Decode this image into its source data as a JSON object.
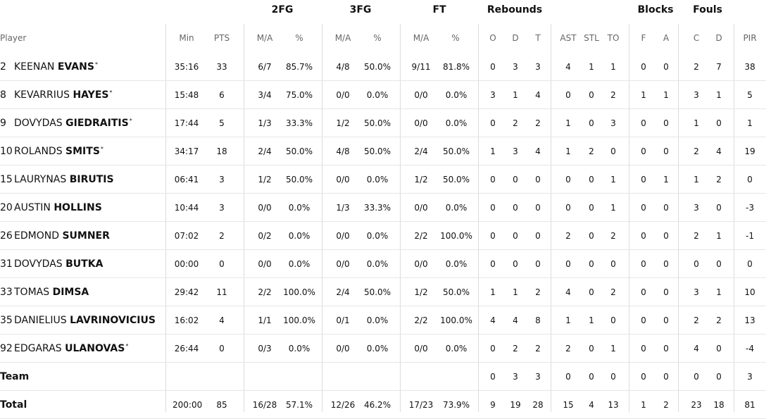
{
  "groups": {
    "fg2": "2FG",
    "fg3": "3FG",
    "ft": "FT",
    "rebounds": "Rebounds",
    "blocks": "Blocks",
    "fouls": "Fouls"
  },
  "headers": {
    "player": "Player",
    "min": "Min",
    "pts": "PTS",
    "fg2_ma": "M/A",
    "fg2_pct": "%",
    "fg3_ma": "M/A",
    "fg3_pct": "%",
    "ft_ma": "M/A",
    "ft_pct": "%",
    "reb_o": "O",
    "reb_d": "D",
    "reb_t": "T",
    "ast": "AST",
    "stl": "STL",
    "to": "TO",
    "blk_f": "F",
    "blk_a": "A",
    "foul_c": "C",
    "foul_d": "D",
    "pir": "PIR"
  },
  "players": [
    {
      "num": "2",
      "first": "KEENAN",
      "last": "EVANS",
      "starter": "*",
      "min": "35:16",
      "pts": "33",
      "fg2_ma": "6/7",
      "fg2_pct": "85.7%",
      "fg3_ma": "4/8",
      "fg3_pct": "50.0%",
      "ft_ma": "9/11",
      "ft_pct": "81.8%",
      "reb_o": "0",
      "reb_d": "3",
      "reb_t": "3",
      "ast": "4",
      "stl": "1",
      "to": "1",
      "blk_f": "0",
      "blk_a": "0",
      "foul_c": "2",
      "foul_d": "7",
      "pir": "38"
    },
    {
      "num": "8",
      "first": "KEVARRIUS",
      "last": "HAYES",
      "starter": "*",
      "min": "15:48",
      "pts": "6",
      "fg2_ma": "3/4",
      "fg2_pct": "75.0%",
      "fg3_ma": "0/0",
      "fg3_pct": "0.0%",
      "ft_ma": "0/0",
      "ft_pct": "0.0%",
      "reb_o": "3",
      "reb_d": "1",
      "reb_t": "4",
      "ast": "0",
      "stl": "0",
      "to": "2",
      "blk_f": "1",
      "blk_a": "1",
      "foul_c": "3",
      "foul_d": "1",
      "pir": "5"
    },
    {
      "num": "9",
      "first": "DOVYDAS",
      "last": "GIEDRAITIS",
      "starter": "*",
      "min": "17:44",
      "pts": "5",
      "fg2_ma": "1/3",
      "fg2_pct": "33.3%",
      "fg3_ma": "1/2",
      "fg3_pct": "50.0%",
      "ft_ma": "0/0",
      "ft_pct": "0.0%",
      "reb_o": "0",
      "reb_d": "2",
      "reb_t": "2",
      "ast": "1",
      "stl": "0",
      "to": "3",
      "blk_f": "0",
      "blk_a": "0",
      "foul_c": "1",
      "foul_d": "0",
      "pir": "1"
    },
    {
      "num": "10",
      "first": "ROLANDS",
      "last": "SMITS",
      "starter": "*",
      "min": "34:17",
      "pts": "18",
      "fg2_ma": "2/4",
      "fg2_pct": "50.0%",
      "fg3_ma": "4/8",
      "fg3_pct": "50.0%",
      "ft_ma": "2/4",
      "ft_pct": "50.0%",
      "reb_o": "1",
      "reb_d": "3",
      "reb_t": "4",
      "ast": "1",
      "stl": "2",
      "to": "0",
      "blk_f": "0",
      "blk_a": "0",
      "foul_c": "2",
      "foul_d": "4",
      "pir": "19"
    },
    {
      "num": "15",
      "first": "LAURYNAS",
      "last": "BIRUTIS",
      "starter": "",
      "min": "06:41",
      "pts": "3",
      "fg2_ma": "1/2",
      "fg2_pct": "50.0%",
      "fg3_ma": "0/0",
      "fg3_pct": "0.0%",
      "ft_ma": "1/2",
      "ft_pct": "50.0%",
      "reb_o": "0",
      "reb_d": "0",
      "reb_t": "0",
      "ast": "0",
      "stl": "0",
      "to": "1",
      "blk_f": "0",
      "blk_a": "1",
      "foul_c": "1",
      "foul_d": "2",
      "pir": "0"
    },
    {
      "num": "20",
      "first": "AUSTIN",
      "last": "HOLLINS",
      "starter": "",
      "min": "10:44",
      "pts": "3",
      "fg2_ma": "0/0",
      "fg2_pct": "0.0%",
      "fg3_ma": "1/3",
      "fg3_pct": "33.3%",
      "ft_ma": "0/0",
      "ft_pct": "0.0%",
      "reb_o": "0",
      "reb_d": "0",
      "reb_t": "0",
      "ast": "0",
      "stl": "0",
      "to": "1",
      "blk_f": "0",
      "blk_a": "0",
      "foul_c": "3",
      "foul_d": "0",
      "pir": "-3"
    },
    {
      "num": "26",
      "first": "EDMOND",
      "last": "SUMNER",
      "starter": "",
      "min": "07:02",
      "pts": "2",
      "fg2_ma": "0/2",
      "fg2_pct": "0.0%",
      "fg3_ma": "0/0",
      "fg3_pct": "0.0%",
      "ft_ma": "2/2",
      "ft_pct": "100.0%",
      "reb_o": "0",
      "reb_d": "0",
      "reb_t": "0",
      "ast": "2",
      "stl": "0",
      "to": "2",
      "blk_f": "0",
      "blk_a": "0",
      "foul_c": "2",
      "foul_d": "1",
      "pir": "-1"
    },
    {
      "num": "31",
      "first": "DOVYDAS",
      "last": "BUTKA",
      "starter": "",
      "min": "00:00",
      "pts": "0",
      "fg2_ma": "0/0",
      "fg2_pct": "0.0%",
      "fg3_ma": "0/0",
      "fg3_pct": "0.0%",
      "ft_ma": "0/0",
      "ft_pct": "0.0%",
      "reb_o": "0",
      "reb_d": "0",
      "reb_t": "0",
      "ast": "0",
      "stl": "0",
      "to": "0",
      "blk_f": "0",
      "blk_a": "0",
      "foul_c": "0",
      "foul_d": "0",
      "pir": "0"
    },
    {
      "num": "33",
      "first": "TOMAS",
      "last": "DIMSA",
      "starter": "",
      "min": "29:42",
      "pts": "11",
      "fg2_ma": "2/2",
      "fg2_pct": "100.0%",
      "fg3_ma": "2/4",
      "fg3_pct": "50.0%",
      "ft_ma": "1/2",
      "ft_pct": "50.0%",
      "reb_o": "1",
      "reb_d": "1",
      "reb_t": "2",
      "ast": "4",
      "stl": "0",
      "to": "2",
      "blk_f": "0",
      "blk_a": "0",
      "foul_c": "3",
      "foul_d": "1",
      "pir": "10"
    },
    {
      "num": "35",
      "first": "DANIELIUS",
      "last": "LAVRINOVICIUS",
      "starter": "",
      "min": "16:02",
      "pts": "4",
      "fg2_ma": "1/1",
      "fg2_pct": "100.0%",
      "fg3_ma": "0/1",
      "fg3_pct": "0.0%",
      "ft_ma": "2/2",
      "ft_pct": "100.0%",
      "reb_o": "4",
      "reb_d": "4",
      "reb_t": "8",
      "ast": "1",
      "stl": "1",
      "to": "0",
      "blk_f": "0",
      "blk_a": "0",
      "foul_c": "2",
      "foul_d": "2",
      "pir": "13"
    },
    {
      "num": "92",
      "first": "EDGARAS",
      "last": "ULANOVAS",
      "starter": "*",
      "min": "26:44",
      "pts": "0",
      "fg2_ma": "0/3",
      "fg2_pct": "0.0%",
      "fg3_ma": "0/0",
      "fg3_pct": "0.0%",
      "ft_ma": "0/0",
      "ft_pct": "0.0%",
      "reb_o": "0",
      "reb_d": "2",
      "reb_t": "2",
      "ast": "2",
      "stl": "0",
      "to": "1",
      "blk_f": "0",
      "blk_a": "0",
      "foul_c": "4",
      "foul_d": "0",
      "pir": "-4"
    }
  ],
  "team": {
    "label": "Team",
    "min": "",
    "pts": "",
    "fg2_ma": "",
    "fg2_pct": "",
    "fg3_ma": "",
    "fg3_pct": "",
    "ft_ma": "",
    "ft_pct": "",
    "reb_o": "0",
    "reb_d": "3",
    "reb_t": "3",
    "ast": "0",
    "stl": "0",
    "to": "0",
    "blk_f": "0",
    "blk_a": "0",
    "foul_c": "0",
    "foul_d": "0",
    "pir": "3"
  },
  "total": {
    "label": "Total",
    "min": "200:00",
    "pts": "85",
    "fg2_ma": "16/28",
    "fg2_pct": "57.1%",
    "fg3_ma": "12/26",
    "fg3_pct": "46.2%",
    "ft_ma": "17/23",
    "ft_pct": "73.9%",
    "reb_o": "9",
    "reb_d": "19",
    "reb_t": "28",
    "ast": "15",
    "stl": "4",
    "to": "13",
    "blk_f": "1",
    "blk_a": "2",
    "foul_c": "23",
    "foul_d": "18",
    "pir": "81"
  }
}
